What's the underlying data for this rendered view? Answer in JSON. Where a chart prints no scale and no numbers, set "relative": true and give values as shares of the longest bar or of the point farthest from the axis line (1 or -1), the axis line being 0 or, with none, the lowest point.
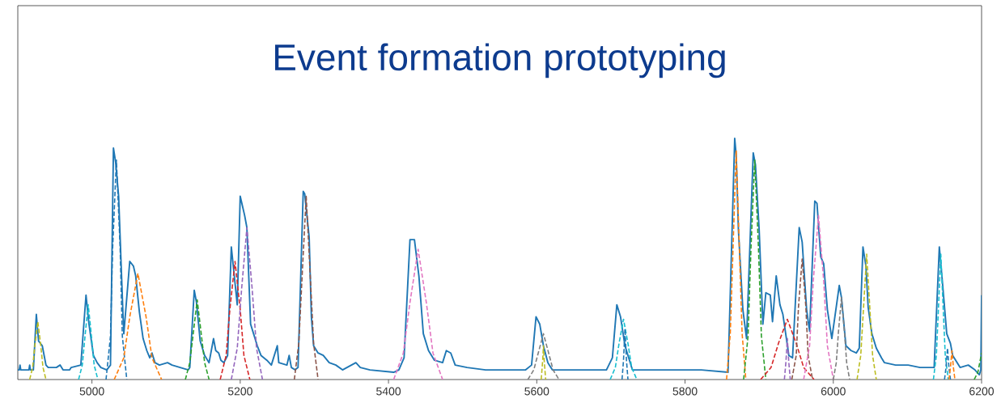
{
  "chart_data": {
    "type": "line",
    "title": "Event formation prototyping",
    "relative": true,
    "xlim": [
      4900,
      6200
    ],
    "xticks": [
      5000,
      5200,
      5400,
      5600,
      5800,
      6000,
      6200
    ],
    "series": [
      {
        "color": "#1f77b4",
        "line_style": "solid",
        "x": [
          4900,
          4902,
          4903,
          4904,
          4915,
          4916,
          4917,
          4921,
          4925,
          4928,
          4933,
          4938,
          4941,
          4952,
          4957,
          4961,
          4970,
          4972,
          4985,
          4992,
          4996,
          5002,
          5007,
          5012,
          5020,
          5025,
          5029,
          5032,
          5036,
          5042,
          5043,
          5051,
          5056,
          5059,
          5064,
          5069,
          5074,
          5078,
          5081,
          5085,
          5091,
          5102,
          5108,
          5130,
          5132,
          5138,
          5141,
          5146,
          5152,
          5158,
          5164,
          5167,
          5171,
          5174,
          5178,
          5183,
          5188,
          5196,
          5200,
          5206,
          5209,
          5214,
          5218,
          5223,
          5228,
          5236,
          5242,
          5250,
          5252,
          5263,
          5266,
          5269,
          5274,
          5278,
          5285,
          5287,
          5293,
          5296,
          5299,
          5305,
          5312,
          5320,
          5329,
          5338,
          5356,
          5362,
          5375,
          5407,
          5414,
          5421,
          5429,
          5435,
          5441,
          5447,
          5454,
          5462,
          5473,
          5478,
          5484,
          5490,
          5506,
          5531,
          5553,
          5585,
          5593,
          5599,
          5604,
          5609,
          5615,
          5621,
          5694,
          5702,
          5708,
          5713,
          5719,
          5729,
          5822,
          5858,
          5867,
          5869,
          5872,
          5878,
          5883,
          5892,
          5895,
          5900,
          5905,
          5909,
          5915,
          5918,
          5923,
          5928,
          5932,
          5940,
          5945,
          5954,
          5958,
          5964,
          5968,
          5975,
          5978,
          5983,
          5987,
          5992,
          5998,
          6008,
          6011,
          6017,
          6024,
          6031,
          6035,
          6040,
          6044,
          6047,
          6052,
          6058,
          6065,
          6069,
          6084,
          6101,
          6117,
          6136,
          6143,
          6147,
          6153,
          6158,
          6161,
          6171,
          6182,
          6191,
          6197,
          6199,
          6200
        ],
        "values": [
          0.04,
          0.04,
          0.06,
          0.04,
          0.04,
          0.06,
          0.04,
          0.04,
          0.27,
          0.16,
          0.14,
          0.06,
          0.05,
          0.05,
          0.06,
          0.04,
          0.04,
          0.05,
          0.06,
          0.35,
          0.23,
          0.1,
          0.07,
          0.05,
          0.04,
          0.06,
          0.96,
          0.9,
          0.76,
          0.26,
          0.19,
          0.49,
          0.47,
          0.43,
          0.28,
          0.17,
          0.12,
          0.09,
          0.11,
          0.07,
          0.06,
          0.07,
          0.06,
          0.04,
          0.05,
          0.37,
          0.32,
          0.16,
          0.1,
          0.07,
          0.17,
          0.12,
          0.11,
          0.08,
          0.07,
          0.1,
          0.55,
          0.31,
          0.76,
          0.68,
          0.63,
          0.23,
          0.19,
          0.14,
          0.1,
          0.08,
          0.06,
          0.14,
          0.07,
          0.06,
          0.1,
          0.05,
          0.04,
          0.05,
          0.78,
          0.77,
          0.59,
          0.26,
          0.14,
          0.11,
          0.1,
          0.07,
          0.06,
          0.04,
          0.07,
          0.05,
          0.04,
          0.03,
          0.04,
          0.09,
          0.58,
          0.58,
          0.43,
          0.19,
          0.12,
          0.08,
          0.07,
          0.12,
          0.11,
          0.06,
          0.05,
          0.04,
          0.04,
          0.04,
          0.06,
          0.26,
          0.23,
          0.14,
          0.07,
          0.04,
          0.04,
          0.09,
          0.31,
          0.26,
          0.14,
          0.04,
          0.04,
          0.03,
          1.0,
          0.93,
          0.62,
          0.29,
          0.17,
          0.94,
          0.89,
          0.62,
          0.23,
          0.36,
          0.35,
          0.24,
          0.43,
          0.31,
          0.27,
          0.1,
          0.09,
          0.63,
          0.57,
          0.29,
          0.2,
          0.74,
          0.73,
          0.51,
          0.48,
          0.29,
          0.17,
          0.39,
          0.34,
          0.14,
          0.12,
          0.11,
          0.13,
          0.55,
          0.47,
          0.3,
          0.19,
          0.13,
          0.09,
          0.07,
          0.06,
          0.06,
          0.05,
          0.05,
          0.55,
          0.41,
          0.19,
          0.15,
          0.1,
          0.05,
          0.06,
          0.04,
          0.02,
          0.04,
          0.35
        ]
      },
      {
        "color": "#bcbd22",
        "line_style": "dashed",
        "x": [
          4916,
          4920,
          4923,
          4927,
          4931,
          4934,
          4938
        ],
        "values": [
          0,
          0.05,
          0.14,
          0.24,
          0.14,
          0.05,
          0
        ]
      },
      {
        "color": "#17becf",
        "line_style": "dashed",
        "x": [
          4982,
          4987,
          4991,
          4995,
          4999,
          5003,
          5008
        ],
        "values": [
          0,
          0.06,
          0.19,
          0.31,
          0.19,
          0.06,
          0
        ]
      },
      {
        "color": "#1f77b4",
        "line_style": "dashed",
        "x": [
          5019,
          5025,
          5028,
          5033,
          5038,
          5041,
          5047
        ],
        "values": [
          0,
          0.18,
          0.55,
          0.91,
          0.55,
          0.18,
          0
        ]
      },
      {
        "color": "#ff7f0e",
        "line_style": "dashed",
        "x": [
          5030,
          5043,
          5051,
          5062,
          5073,
          5081,
          5094
        ],
        "values": [
          0,
          0.09,
          0.26,
          0.44,
          0.26,
          0.09,
          0
        ]
      },
      {
        "color": "#2ca02c",
        "line_style": "dashed",
        "x": [
          5126,
          5132,
          5137,
          5142,
          5147,
          5152,
          5158
        ],
        "values": [
          0,
          0.07,
          0.2,
          0.33,
          0.2,
          0.07,
          0
        ]
      },
      {
        "color": "#d62728",
        "line_style": "dashed",
        "x": [
          5173,
          5181,
          5186,
          5193,
          5200,
          5205,
          5213
        ],
        "values": [
          0,
          0.1,
          0.29,
          0.49,
          0.29,
          0.1,
          0
        ]
      },
      {
        "color": "#9467bd",
        "line_style": "dashed",
        "x": [
          5188,
          5196,
          5202,
          5209,
          5216,
          5222,
          5230
        ],
        "values": [
          0,
          0.13,
          0.38,
          0.63,
          0.38,
          0.13,
          0
        ]
      },
      {
        "color": "#8c564b",
        "line_style": "dashed",
        "x": [
          5273,
          5279,
          5284,
          5289,
          5294,
          5299,
          5305
        ],
        "values": [
          0,
          0.15,
          0.46,
          0.76,
          0.46,
          0.15,
          0
        ]
      },
      {
        "color": "#e377c2",
        "line_style": "dashed",
        "x": [
          5407,
          5420,
          5429,
          5440,
          5451,
          5460,
          5473
        ],
        "values": [
          0,
          0.11,
          0.32,
          0.54,
          0.32,
          0.11,
          0
        ]
      },
      {
        "color": "#7f7f7f",
        "line_style": "dashed",
        "x": [
          5588,
          5596,
          5602,
          5609,
          5616,
          5622,
          5630
        ],
        "values": [
          0,
          0.04,
          0.11,
          0.19,
          0.11,
          0.04,
          0
        ]
      },
      {
        "color": "#bcbd22",
        "line_style": "dashed",
        "x": [
          5606,
          5608,
          5609,
          5610,
          5612
        ],
        "values": [
          0,
          0.08,
          0.14,
          0.08,
          0
        ]
      },
      {
        "color": "#17becf",
        "line_style": "dashed",
        "x": [
          5699,
          5706,
          5711,
          5717,
          5723,
          5728,
          5735
        ],
        "values": [
          0,
          0.05,
          0.15,
          0.25,
          0.15,
          0.05,
          0
        ]
      },
      {
        "color": "#1f77b4",
        "line_style": "dashed",
        "x": [
          5715,
          5717,
          5719,
          5721,
          5723
        ],
        "values": [
          0,
          0.08,
          0.21,
          0.08,
          0
        ]
      },
      {
        "color": "#ff7f0e",
        "line_style": "dashed",
        "x": [
          5856,
          5861,
          5865,
          5869,
          5873,
          5877,
          5882
        ],
        "values": [
          0,
          0.19,
          0.57,
          0.95,
          0.57,
          0.19,
          0
        ]
      },
      {
        "color": "#2ca02c",
        "line_style": "dashed",
        "x": [
          5879,
          5885,
          5889,
          5894,
          5899,
          5903,
          5909
        ],
        "values": [
          0,
          0.18,
          0.55,
          0.91,
          0.55,
          0.18,
          0
        ]
      },
      {
        "color": "#d62728",
        "line_style": "dashed",
        "x": [
          5902,
          5916,
          5926,
          5938,
          5950,
          5960,
          5974
        ],
        "values": [
          0,
          0.05,
          0.15,
          0.25,
          0.15,
          0.05,
          0
        ]
      },
      {
        "color": "#9467bd",
        "line_style": "dashed",
        "x": [
          5934,
          5936,
          5938,
          5940,
          5942
        ],
        "values": [
          0,
          0.07,
          0.17,
          0.07,
          0
        ]
      },
      {
        "color": "#8c564b",
        "line_style": "dashed",
        "x": [
          5944,
          5950,
          5953,
          5958,
          5963,
          5966,
          5972
        ],
        "values": [
          0,
          0.1,
          0.3,
          0.5,
          0.3,
          0.1,
          0
        ]
      },
      {
        "color": "#e377c2",
        "line_style": "dashed",
        "x": [
          5960,
          5968,
          5973,
          5980,
          5987,
          5992,
          6000
        ],
        "values": [
          0,
          0.14,
          0.41,
          0.68,
          0.41,
          0.14,
          0
        ]
      },
      {
        "color": "#7f7f7f",
        "line_style": "dashed",
        "x": [
          6000,
          6004,
          6007,
          6011,
          6015,
          6018,
          6022
        ],
        "values": [
          0,
          0.07,
          0.2,
          0.34,
          0.2,
          0.07,
          0
        ]
      },
      {
        "color": "#bcbd22",
        "line_style": "dashed",
        "x": [
          6032,
          6037,
          6041,
          6045,
          6049,
          6053,
          6058
        ],
        "values": [
          0,
          0.1,
          0.31,
          0.52,
          0.31,
          0.1,
          0
        ]
      },
      {
        "color": "#17becf",
        "line_style": "dashed",
        "x": [
          6135,
          6139,
          6142,
          6145,
          6148,
          6151,
          6155
        ],
        "values": [
          0,
          0.1,
          0.31,
          0.52,
          0.31,
          0.1,
          0
        ]
      },
      {
        "color": "#1f77b4",
        "line_style": "dashed",
        "x": [
          6150,
          6152,
          6154,
          6156,
          6158
        ],
        "values": [
          0,
          0.05,
          0.13,
          0.05,
          0
        ]
      },
      {
        "color": "#ff7f0e",
        "line_style": "dashed",
        "x": [
          6156,
          6158,
          6160,
          6162,
          6164
        ],
        "values": [
          0,
          0.05,
          0.12,
          0.05,
          0
        ]
      },
      {
        "color": "#2ca02c",
        "line_style": "dashed",
        "x": [
          6190,
          6195,
          6200
        ],
        "values": [
          0,
          0.03,
          0.11
        ]
      }
    ]
  }
}
